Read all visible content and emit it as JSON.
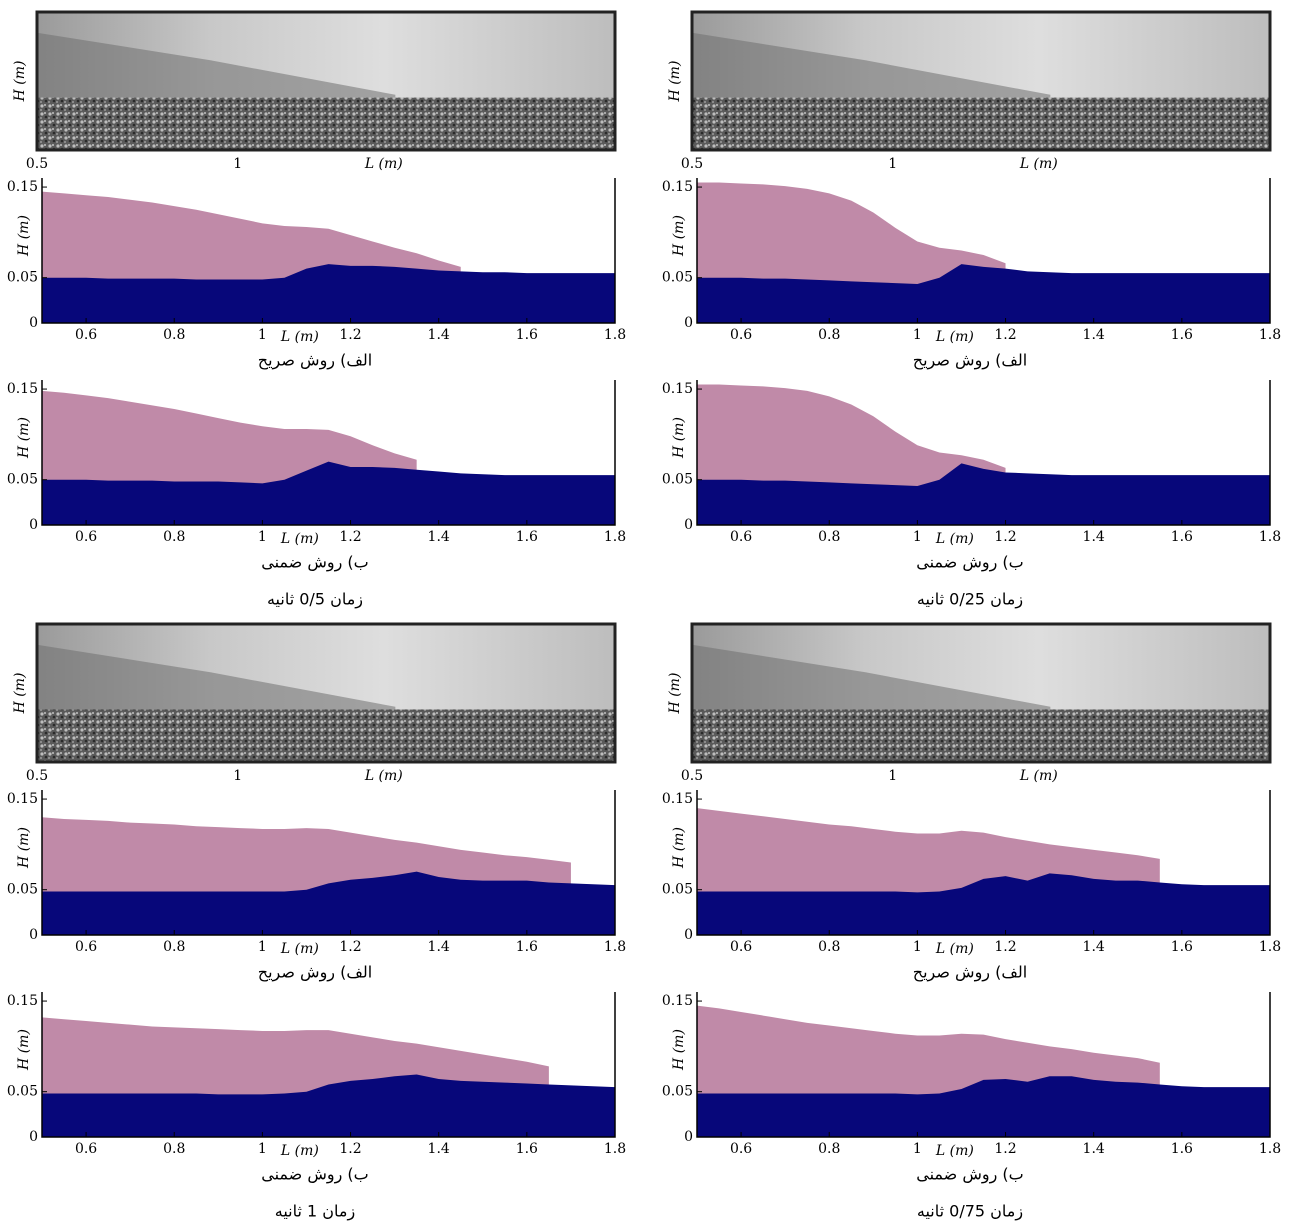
{
  "panels": [
    {
      "time": "زمان 0/5 ثانیه",
      "photo": {
        "xlim": [
          0.5,
          1.94
        ],
        "xticks": [
          0.5,
          1
        ],
        "xlabel": "L (m)",
        "ylabel": "H (m)"
      }
    },
    {
      "time": "زمان 0/25 ثانیه",
      "photo": {
        "xlim": [
          0.5,
          1.94
        ],
        "xticks": [
          0.5,
          1
        ],
        "xlabel": "L (m)",
        "ylabel": "H (m)"
      }
    },
    {
      "time": "زمان 1 ثانیه",
      "photo": {
        "xlim": [
          0.5,
          1.94
        ],
        "xticks": [
          0.5,
          1
        ],
        "xlabel": "L (m)",
        "ylabel": "H (m)"
      }
    },
    {
      "time": "زمان 0/75 ثانیه",
      "photo": {
        "xlim": [
          0.5,
          1.94
        ],
        "xticks": [
          0.5,
          1
        ],
        "xlabel": "L (m)",
        "ylabel": "H (m)"
      }
    }
  ],
  "chart_data": [
    {
      "type": "area",
      "caption": "الف) روش صریح",
      "xlabel": "L (m)",
      "ylabel": "H (m)",
      "x": [
        0.5,
        0.55,
        0.6,
        0.65,
        0.7,
        0.75,
        0.8,
        0.85,
        0.9,
        0.95,
        1.0,
        1.05,
        1.1,
        1.15,
        1.2,
        1.25,
        1.3,
        1.35,
        1.4,
        1.45,
        1.5,
        1.55,
        1.6,
        1.65,
        1.7,
        1.75,
        1.8
      ],
      "series": [
        {
          "color": "#c08aa8",
          "values": [
            0.145,
            0.143,
            0.141,
            0.139,
            0.136,
            0.133,
            0.129,
            0.125,
            0.12,
            0.115,
            0.11,
            0.107,
            0.106,
            0.104,
            0.097,
            0.09,
            0.083,
            0.077,
            0.069,
            0.062,
            null,
            null,
            null,
            null,
            null,
            null,
            null
          ]
        },
        {
          "color": "#07077a",
          "values": [
            0.05,
            0.05,
            0.05,
            0.049,
            0.049,
            0.049,
            0.049,
            0.048,
            0.048,
            0.048,
            0.048,
            0.05,
            0.06,
            0.065,
            0.063,
            0.063,
            0.062,
            0.06,
            0.058,
            0.057,
            0.056,
            0.056,
            0.055,
            0.055,
            0.055,
            0.055,
            0.055
          ]
        }
      ],
      "xlim": [
        0.5,
        1.8
      ],
      "ylim": [
        0,
        0.16
      ],
      "xticks": [
        0.6,
        0.8,
        1,
        1.2,
        1.4,
        1.6,
        1.8
      ],
      "yticks": [
        0,
        0.05,
        0.15
      ]
    },
    {
      "type": "area",
      "caption": "ب) روش ضمنی",
      "xlabel": "L (m)",
      "ylabel": "H (m)",
      "x": [
        0.5,
        0.55,
        0.6,
        0.65,
        0.7,
        0.75,
        0.8,
        0.85,
        0.9,
        0.95,
        1.0,
        1.05,
        1.1,
        1.15,
        1.2,
        1.25,
        1.3,
        1.35,
        1.4,
        1.45,
        1.5,
        1.55,
        1.6,
        1.65,
        1.7,
        1.75,
        1.8
      ],
      "series": [
        {
          "color": "#c08aa8",
          "values": [
            0.148,
            0.146,
            0.143,
            0.14,
            0.136,
            0.132,
            0.128,
            0.123,
            0.118,
            0.113,
            0.109,
            0.106,
            0.106,
            0.105,
            0.098,
            0.088,
            0.079,
            0.072,
            null,
            null,
            null,
            null,
            null,
            null,
            null,
            null,
            null
          ]
        },
        {
          "color": "#07077a",
          "values": [
            0.05,
            0.05,
            0.05,
            0.049,
            0.049,
            0.049,
            0.048,
            0.048,
            0.048,
            0.047,
            0.046,
            0.05,
            0.06,
            0.07,
            0.064,
            0.064,
            0.063,
            0.061,
            0.059,
            0.057,
            0.056,
            0.055,
            0.055,
            0.055,
            0.055,
            0.055,
            0.055
          ]
        }
      ],
      "xlim": [
        0.5,
        1.8
      ],
      "ylim": [
        0,
        0.16
      ],
      "xticks": [
        0.6,
        0.8,
        1,
        1.2,
        1.4,
        1.6,
        1.8
      ],
      "yticks": [
        0,
        0.05,
        0.15
      ]
    },
    {
      "type": "area",
      "caption": "الف) روش صریح",
      "xlabel": "L (m)",
      "ylabel": "H (m)",
      "x": [
        0.5,
        0.55,
        0.6,
        0.65,
        0.7,
        0.75,
        0.8,
        0.85,
        0.9,
        0.95,
        1.0,
        1.05,
        1.1,
        1.15,
        1.2,
        1.25,
        1.3,
        1.35,
        1.4,
        1.45,
        1.5,
        1.55,
        1.6,
        1.65,
        1.7,
        1.75,
        1.8
      ],
      "series": [
        {
          "color": "#c08aa8",
          "values": [
            0.155,
            0.155,
            0.154,
            0.153,
            0.151,
            0.148,
            0.143,
            0.135,
            0.122,
            0.105,
            0.09,
            0.083,
            0.08,
            0.075,
            0.066,
            null,
            null,
            null,
            null,
            null,
            null,
            null,
            null,
            null,
            null,
            null,
            null
          ]
        },
        {
          "color": "#07077a",
          "values": [
            0.05,
            0.05,
            0.05,
            0.049,
            0.049,
            0.048,
            0.047,
            0.046,
            0.045,
            0.044,
            0.043,
            0.05,
            0.065,
            0.062,
            0.06,
            0.057,
            0.056,
            0.055,
            0.055,
            0.055,
            0.055,
            0.055,
            0.055,
            0.055,
            0.055,
            0.055,
            0.055
          ]
        }
      ],
      "xlim": [
        0.5,
        1.8
      ],
      "ylim": [
        0,
        0.16
      ],
      "xticks": [
        0.6,
        0.8,
        1,
        1.2,
        1.4,
        1.6,
        1.8
      ],
      "yticks": [
        0,
        0.05,
        0.15
      ]
    },
    {
      "type": "area",
      "caption": "ب) روش ضمنی",
      "xlabel": "L (m)",
      "ylabel": "H (m)",
      "x": [
        0.5,
        0.55,
        0.6,
        0.65,
        0.7,
        0.75,
        0.8,
        0.85,
        0.9,
        0.95,
        1.0,
        1.05,
        1.1,
        1.15,
        1.2,
        1.25,
        1.3,
        1.35,
        1.4,
        1.45,
        1.5,
        1.55,
        1.6,
        1.65,
        1.7,
        1.75,
        1.8
      ],
      "series": [
        {
          "color": "#c08aa8",
          "values": [
            0.155,
            0.155,
            0.154,
            0.153,
            0.151,
            0.148,
            0.142,
            0.133,
            0.12,
            0.103,
            0.088,
            0.08,
            0.077,
            0.072,
            0.063,
            null,
            null,
            null,
            null,
            null,
            null,
            null,
            null,
            null,
            null,
            null,
            null
          ]
        },
        {
          "color": "#07077a",
          "values": [
            0.05,
            0.05,
            0.05,
            0.049,
            0.049,
            0.048,
            0.047,
            0.046,
            0.045,
            0.044,
            0.043,
            0.05,
            0.068,
            0.062,
            0.058,
            0.057,
            0.056,
            0.055,
            0.055,
            0.055,
            0.055,
            0.055,
            0.055,
            0.055,
            0.055,
            0.055,
            0.055
          ]
        }
      ],
      "xlim": [
        0.5,
        1.8
      ],
      "ylim": [
        0,
        0.16
      ],
      "xticks": [
        0.6,
        0.8,
        1,
        1.2,
        1.4,
        1.6,
        1.8
      ],
      "yticks": [
        0,
        0.05,
        0.15
      ]
    },
    {
      "type": "area",
      "caption": "الف) روش صریح",
      "xlabel": "L (m)",
      "ylabel": "H (m)",
      "x": [
        0.5,
        0.55,
        0.6,
        0.65,
        0.7,
        0.75,
        0.8,
        0.85,
        0.9,
        0.95,
        1.0,
        1.05,
        1.1,
        1.15,
        1.2,
        1.25,
        1.3,
        1.35,
        1.4,
        1.45,
        1.5,
        1.55,
        1.6,
        1.65,
        1.7,
        1.75,
        1.8
      ],
      "series": [
        {
          "color": "#c08aa8",
          "values": [
            0.13,
            0.128,
            0.127,
            0.126,
            0.124,
            0.123,
            0.122,
            0.12,
            0.119,
            0.118,
            0.117,
            0.117,
            0.118,
            0.117,
            0.113,
            0.109,
            0.105,
            0.102,
            0.098,
            0.094,
            0.091,
            0.088,
            0.086,
            0.083,
            0.08,
            null,
            null
          ]
        },
        {
          "color": "#07077a",
          "values": [
            0.048,
            0.048,
            0.048,
            0.048,
            0.048,
            0.048,
            0.048,
            0.048,
            0.048,
            0.048,
            0.048,
            0.048,
            0.05,
            0.057,
            0.061,
            0.063,
            0.066,
            0.07,
            0.064,
            0.061,
            0.06,
            0.06,
            0.06,
            0.058,
            0.057,
            0.056,
            0.055
          ]
        }
      ],
      "xlim": [
        0.5,
        1.8
      ],
      "ylim": [
        0,
        0.16
      ],
      "xticks": [
        0.6,
        0.8,
        1,
        1.2,
        1.4,
        1.6,
        1.8
      ],
      "yticks": [
        0,
        0.05,
        0.15
      ]
    },
    {
      "type": "area",
      "caption": "ب) روش ضمنی",
      "xlabel": "L (m)",
      "ylabel": "H (m)",
      "x": [
        0.5,
        0.55,
        0.6,
        0.65,
        0.7,
        0.75,
        0.8,
        0.85,
        0.9,
        0.95,
        1.0,
        1.05,
        1.1,
        1.15,
        1.2,
        1.25,
        1.3,
        1.35,
        1.4,
        1.45,
        1.5,
        1.55,
        1.6,
        1.65,
        1.7,
        1.75,
        1.8
      ],
      "series": [
        {
          "color": "#c08aa8",
          "values": [
            0.132,
            0.13,
            0.128,
            0.126,
            0.124,
            0.122,
            0.121,
            0.12,
            0.119,
            0.118,
            0.117,
            0.117,
            0.118,
            0.118,
            0.114,
            0.11,
            0.106,
            0.103,
            0.099,
            0.095,
            0.091,
            0.087,
            0.083,
            0.078,
            null,
            null,
            null
          ]
        },
        {
          "color": "#07077a",
          "values": [
            0.048,
            0.048,
            0.048,
            0.048,
            0.048,
            0.048,
            0.048,
            0.048,
            0.047,
            0.047,
            0.047,
            0.048,
            0.05,
            0.058,
            0.062,
            0.064,
            0.067,
            0.069,
            0.064,
            0.062,
            0.061,
            0.06,
            0.059,
            0.058,
            0.057,
            0.056,
            0.055
          ]
        }
      ],
      "xlim": [
        0.5,
        1.8
      ],
      "ylim": [
        0,
        0.16
      ],
      "xticks": [
        0.6,
        0.8,
        1,
        1.2,
        1.4,
        1.6,
        1.8
      ],
      "yticks": [
        0,
        0.05,
        0.15
      ]
    },
    {
      "type": "area",
      "caption": "الف) روش صریح",
      "xlabel": "L (m)",
      "ylabel": "H (m)",
      "x": [
        0.5,
        0.55,
        0.6,
        0.65,
        0.7,
        0.75,
        0.8,
        0.85,
        0.9,
        0.95,
        1.0,
        1.05,
        1.1,
        1.15,
        1.2,
        1.25,
        1.3,
        1.35,
        1.4,
        1.45,
        1.5,
        1.55,
        1.6,
        1.65,
        1.7,
        1.75,
        1.8
      ],
      "series": [
        {
          "color": "#c08aa8",
          "values": [
            0.14,
            0.137,
            0.134,
            0.131,
            0.128,
            0.125,
            0.122,
            0.12,
            0.117,
            0.114,
            0.112,
            0.112,
            0.115,
            0.113,
            0.108,
            0.104,
            0.1,
            0.097,
            0.094,
            0.091,
            0.088,
            0.084,
            null,
            null,
            null,
            null,
            null
          ]
        },
        {
          "color": "#07077a",
          "values": [
            0.048,
            0.048,
            0.048,
            0.048,
            0.048,
            0.048,
            0.048,
            0.048,
            0.048,
            0.048,
            0.047,
            0.048,
            0.052,
            0.062,
            0.065,
            0.06,
            0.068,
            0.066,
            0.062,
            0.06,
            0.06,
            0.058,
            0.056,
            0.055,
            0.055,
            0.055,
            0.055
          ]
        }
      ],
      "xlim": [
        0.5,
        1.8
      ],
      "ylim": [
        0,
        0.16
      ],
      "xticks": [
        0.6,
        0.8,
        1,
        1.2,
        1.4,
        1.6,
        1.8
      ],
      "yticks": [
        0,
        0.05,
        0.15
      ]
    },
    {
      "type": "area",
      "caption": "ب) روش ضمنی",
      "xlabel": "L (m)",
      "ylabel": "H (m)",
      "x": [
        0.5,
        0.55,
        0.6,
        0.65,
        0.7,
        0.75,
        0.8,
        0.85,
        0.9,
        0.95,
        1.0,
        1.05,
        1.1,
        1.15,
        1.2,
        1.25,
        1.3,
        1.35,
        1.4,
        1.45,
        1.5,
        1.55,
        1.6,
        1.65,
        1.7,
        1.75,
        1.8
      ],
      "series": [
        {
          "color": "#c08aa8",
          "values": [
            0.145,
            0.142,
            0.138,
            0.134,
            0.13,
            0.126,
            0.123,
            0.12,
            0.117,
            0.114,
            0.112,
            0.112,
            0.114,
            0.113,
            0.108,
            0.104,
            0.1,
            0.097,
            0.093,
            0.09,
            0.087,
            0.082,
            null,
            null,
            null,
            null,
            null
          ]
        },
        {
          "color": "#07077a",
          "values": [
            0.048,
            0.048,
            0.048,
            0.048,
            0.048,
            0.048,
            0.048,
            0.048,
            0.048,
            0.048,
            0.047,
            0.048,
            0.053,
            0.063,
            0.064,
            0.061,
            0.067,
            0.067,
            0.063,
            0.061,
            0.06,
            0.058,
            0.056,
            0.055,
            0.055,
            0.055,
            0.055
          ]
        }
      ],
      "xlim": [
        0.5,
        1.8
      ],
      "ylim": [
        0,
        0.16
      ],
      "xticks": [
        0.6,
        0.8,
        1,
        1.2,
        1.4,
        1.6,
        1.8
      ],
      "yticks": [
        0,
        0.05,
        0.15
      ]
    }
  ]
}
